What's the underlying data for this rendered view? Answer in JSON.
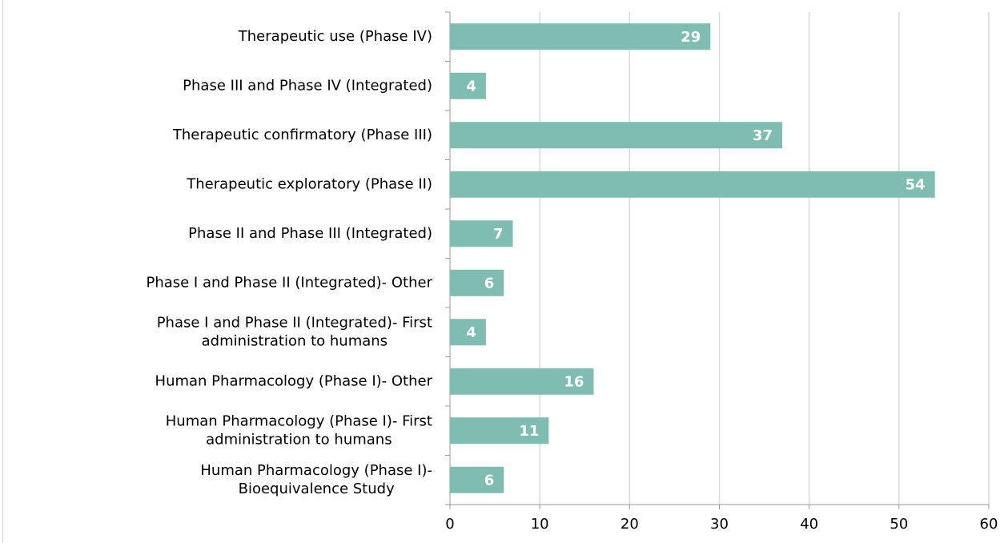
{
  "chart_data": {
    "type": "bar",
    "orientation": "horizontal",
    "categories": [
      "Therapeutic use (Phase IV)",
      "Phase III and Phase IV (Integrated)",
      "Therapeutic confirmatory (Phase III)",
      "Therapeutic exploratory (Phase II)",
      "Phase II and Phase III (Integrated)",
      "Phase I and Phase II (Integrated)- Other",
      "Phase I and Phase II (Integrated)- First administration to humans",
      "Human Pharmacology (Phase I)- Other",
      "Human Pharmacology (Phase I)- First administration to humans",
      "Human Pharmacology (Phase I)- Bioequivalence Study"
    ],
    "values": [
      29,
      4,
      37,
      54,
      7,
      6,
      4,
      16,
      11,
      6
    ],
    "color": "#7fbcb1",
    "xlim": [
      0,
      60
    ],
    "xticks": [
      0,
      10,
      20,
      30,
      40,
      50,
      60
    ],
    "grid": true
  }
}
